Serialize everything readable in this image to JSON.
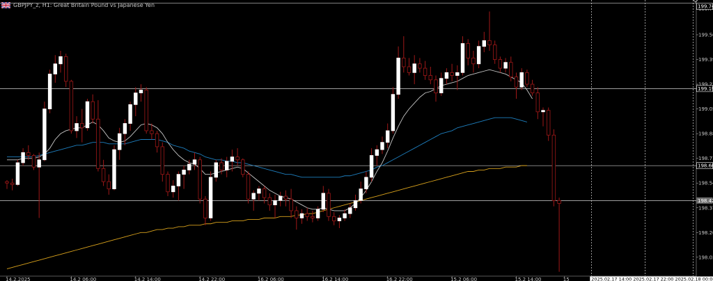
{
  "window": {
    "title": "GBPJPY_z, H1:  Great Britain Pound vs Japanese Yen",
    "flag_icon": "uk-flag-icon"
  },
  "chart_data": {
    "type": "candlestick",
    "symbol": "GBPJPY_z",
    "timeframe": "H1",
    "ylim": [
      197.9,
      199.78
    ],
    "price_ticks": [
      "199.74",
      "199.56",
      "199.39",
      "199.22",
      "199.05",
      "198.88",
      "198.71",
      "198.54",
      "198.37",
      "198.20",
      "198.03"
    ],
    "time_ticks": [
      {
        "i": 0,
        "label": "14.2.2025"
      },
      {
        "i": 12,
        "label": "14.2 06:00"
      },
      {
        "i": 24,
        "label": "14.2 14:00"
      },
      {
        "i": 36,
        "label": "14.2 22:00"
      },
      {
        "i": 47,
        "label": "16.2 06:00"
      },
      {
        "i": 59,
        "label": "16.2 14:00"
      },
      {
        "i": 71,
        "label": "16.2 22:00"
      },
      {
        "i": 83,
        "label": "15.2 06:00"
      },
      {
        "i": 95,
        "label": "15.2 14:00"
      },
      {
        "i": 104,
        "label": "15"
      }
    ],
    "cursor_time_label": "2025.02.17 14:00  2025.02.17 22:00  2025.02.18 00:00",
    "horizontal_lines": [
      {
        "price": 199.19,
        "label": "199.19",
        "color": "#ffffff"
      },
      {
        "price": 198.66,
        "label": "198.66",
        "color": "#ffffff"
      },
      {
        "price": 198.42,
        "label": "198.42",
        "color": "#ffffff",
        "bid": true
      }
    ],
    "top_line_label": "199.74",
    "vlines_index": [
      109,
      119,
      128
    ],
    "candles": [
      [
        198.55,
        198.56,
        198.5,
        198.54
      ],
      [
        198.54,
        198.57,
        198.49,
        198.53
      ],
      [
        198.53,
        198.7,
        198.52,
        198.68
      ],
      [
        198.68,
        198.78,
        198.66,
        198.75
      ],
      [
        198.75,
        198.8,
        198.7,
        198.73
      ],
      [
        198.73,
        198.74,
        198.63,
        198.65
      ],
      [
        198.65,
        198.75,
        198.3,
        198.7
      ],
      [
        198.7,
        199.1,
        198.69,
        199.05
      ],
      [
        199.05,
        199.32,
        199.02,
        199.29
      ],
      [
        199.29,
        199.42,
        199.23,
        199.36
      ],
      [
        199.36,
        199.45,
        199.3,
        199.41
      ],
      [
        199.41,
        199.43,
        199.2,
        199.24
      ],
      [
        199.24,
        199.25,
        198.88,
        198.9
      ],
      [
        198.9,
        199.0,
        198.85,
        198.95
      ],
      [
        198.95,
        199.05,
        198.82,
        198.92
      ],
      [
        198.92,
        199.12,
        198.9,
        199.1
      ],
      [
        199.1,
        199.15,
        198.95,
        198.98
      ],
      [
        198.98,
        199.11,
        198.62,
        198.64
      ],
      [
        198.64,
        198.7,
        198.52,
        198.55
      ],
      [
        198.55,
        198.6,
        198.46,
        198.5
      ],
      [
        198.5,
        198.8,
        198.49,
        198.77
      ],
      [
        198.77,
        198.92,
        198.7,
        198.88
      ],
      [
        198.88,
        198.98,
        198.8,
        198.95
      ],
      [
        198.95,
        199.1,
        198.9,
        199.08
      ],
      [
        199.08,
        199.2,
        199.0,
        199.16
      ],
      [
        199.16,
        199.22,
        199.1,
        199.18
      ],
      [
        199.18,
        199.2,
        198.88,
        198.9
      ],
      [
        198.9,
        198.95,
        198.84,
        198.88
      ],
      [
        198.88,
        198.9,
        198.75,
        198.79
      ],
      [
        198.79,
        198.82,
        198.55,
        198.6
      ],
      [
        198.6,
        198.62,
        198.45,
        198.48
      ],
      [
        198.48,
        198.56,
        198.44,
        198.52
      ],
      [
        198.52,
        198.62,
        198.42,
        198.6
      ],
      [
        198.6,
        198.66,
        198.5,
        198.63
      ],
      [
        198.63,
        198.7,
        198.6,
        198.67
      ],
      [
        198.67,
        198.75,
        198.63,
        198.7
      ],
      [
        198.7,
        198.72,
        198.4,
        198.43
      ],
      [
        198.43,
        198.45,
        198.25,
        198.3
      ],
      [
        198.3,
        198.62,
        198.28,
        198.58
      ],
      [
        198.58,
        198.7,
        198.55,
        198.68
      ],
      [
        198.68,
        198.71,
        198.6,
        198.63
      ],
      [
        198.63,
        198.72,
        198.58,
        198.69
      ],
      [
        198.69,
        198.77,
        198.62,
        198.72
      ],
      [
        198.72,
        198.78,
        198.66,
        198.7
      ],
      [
        198.7,
        198.71,
        198.58,
        198.6
      ],
      [
        198.6,
        198.62,
        198.4,
        198.43
      ],
      [
        198.43,
        198.49,
        198.35,
        198.47
      ],
      [
        198.47,
        198.52,
        198.42,
        198.5
      ],
      [
        198.5,
        198.52,
        198.4,
        198.44
      ],
      [
        198.44,
        198.47,
        198.35,
        198.39
      ],
      [
        198.39,
        198.46,
        198.3,
        198.42
      ],
      [
        198.42,
        198.48,
        198.38,
        198.45
      ],
      [
        198.45,
        198.49,
        198.38,
        198.43
      ],
      [
        198.43,
        198.5,
        198.3,
        198.35
      ],
      [
        198.35,
        198.38,
        198.22,
        198.3
      ],
      [
        198.3,
        198.36,
        198.26,
        198.33
      ],
      [
        198.33,
        198.37,
        198.28,
        198.31
      ],
      [
        198.31,
        198.35,
        198.27,
        198.3
      ],
      [
        198.3,
        198.38,
        198.28,
        198.36
      ],
      [
        198.36,
        198.52,
        198.34,
        198.47
      ],
      [
        198.47,
        198.5,
        198.28,
        198.31
      ],
      [
        198.31,
        198.34,
        198.25,
        198.28
      ],
      [
        198.28,
        198.32,
        198.23,
        198.3
      ],
      [
        198.3,
        198.36,
        198.28,
        198.33
      ],
      [
        198.33,
        198.4,
        198.3,
        198.37
      ],
      [
        198.37,
        198.46,
        198.35,
        198.42
      ],
      [
        198.42,
        198.55,
        198.4,
        198.5
      ],
      [
        198.5,
        198.62,
        198.47,
        198.58
      ],
      [
        198.58,
        198.78,
        198.55,
        198.73
      ],
      [
        198.73,
        198.8,
        198.66,
        198.77
      ],
      [
        198.77,
        198.86,
        198.74,
        198.82
      ],
      [
        198.82,
        198.95,
        198.78,
        198.9
      ],
      [
        198.9,
        199.2,
        198.88,
        199.15
      ],
      [
        199.15,
        199.48,
        199.12,
        199.4
      ],
      [
        199.4,
        199.55,
        199.3,
        199.34
      ],
      [
        199.34,
        199.4,
        199.28,
        199.3
      ],
      [
        199.3,
        199.42,
        199.22,
        199.36
      ],
      [
        199.36,
        199.4,
        199.3,
        199.33
      ],
      [
        199.33,
        199.38,
        199.25,
        199.28
      ],
      [
        199.28,
        199.34,
        199.22,
        199.25
      ],
      [
        199.25,
        199.28,
        199.1,
        199.16
      ],
      [
        199.16,
        199.3,
        199.14,
        199.26
      ],
      [
        199.26,
        199.33,
        199.22,
        199.3
      ],
      [
        199.3,
        199.36,
        199.24,
        199.28
      ],
      [
        199.28,
        199.35,
        199.18,
        199.3
      ],
      [
        199.3,
        199.55,
        199.28,
        199.5
      ],
      [
        199.5,
        199.53,
        199.35,
        199.4
      ],
      [
        199.4,
        199.45,
        199.3,
        199.36
      ],
      [
        199.36,
        199.52,
        199.33,
        199.48
      ],
      [
        199.48,
        199.58,
        199.44,
        199.52
      ],
      [
        199.52,
        199.72,
        199.45,
        199.49
      ],
      [
        199.49,
        199.52,
        199.36,
        199.39
      ],
      [
        199.39,
        199.41,
        199.3,
        199.33
      ],
      [
        199.33,
        199.4,
        199.3,
        199.37
      ],
      [
        199.37,
        199.41,
        199.24,
        199.27
      ],
      [
        199.27,
        199.3,
        199.12,
        199.2
      ],
      [
        199.2,
        199.33,
        199.18,
        199.3
      ],
      [
        199.3,
        199.32,
        199.2,
        199.22
      ],
      [
        199.22,
        199.25,
        199.14,
        199.16
      ],
      [
        199.16,
        199.2,
        198.98,
        199.03
      ],
      [
        199.03,
        199.06,
        198.93,
        199.04
      ],
      [
        199.04,
        199.06,
        198.83,
        198.87
      ],
      [
        198.87,
        198.91,
        198.38,
        198.42
      ],
      [
        198.42,
        198.44,
        197.93,
        198.4
      ]
    ],
    "ma_fast": [
      198.7,
      198.7,
      198.7,
      198.71,
      198.71,
      198.71,
      198.72,
      198.74,
      198.78,
      198.84,
      198.88,
      198.9,
      198.91,
      198.92,
      198.92,
      198.94,
      198.96,
      198.94,
      198.9,
      198.85,
      198.83,
      198.82,
      198.83,
      198.86,
      198.9,
      198.94,
      198.95,
      198.94,
      198.92,
      198.88,
      198.82,
      198.77,
      198.73,
      198.7,
      198.68,
      198.67,
      198.64,
      198.6,
      198.6,
      198.61,
      198.62,
      198.63,
      198.64,
      198.65,
      198.64,
      198.61,
      198.58,
      198.55,
      198.52,
      198.49,
      198.47,
      198.45,
      198.44,
      198.43,
      198.41,
      198.39,
      198.37,
      198.36,
      198.36,
      198.37,
      198.36,
      198.35,
      198.35,
      198.35,
      198.37,
      198.4,
      198.44,
      198.49,
      198.55,
      198.62,
      198.68,
      198.76,
      198.85,
      198.93,
      199.0,
      199.05,
      199.09,
      199.13,
      199.16,
      199.17,
      199.19,
      199.21,
      199.22,
      199.23,
      199.24,
      199.26,
      199.28,
      199.29,
      199.3,
      199.31,
      199.32,
      199.31,
      199.3,
      199.29,
      199.27,
      199.25,
      199.23,
      199.18,
      199.12
    ],
    "ma_mid": [
      198.72,
      198.72,
      198.72,
      198.72,
      198.72,
      198.72,
      198.73,
      198.74,
      198.75,
      198.76,
      198.77,
      198.78,
      198.79,
      198.8,
      198.8,
      198.81,
      198.82,
      198.82,
      198.82,
      198.81,
      198.81,
      198.81,
      198.81,
      198.82,
      198.83,
      198.84,
      198.84,
      198.84,
      198.84,
      198.83,
      198.82,
      198.8,
      198.79,
      198.78,
      198.76,
      198.75,
      198.74,
      198.72,
      198.71,
      198.7,
      198.7,
      198.69,
      198.69,
      198.68,
      198.68,
      198.67,
      198.66,
      198.65,
      198.64,
      198.63,
      198.62,
      198.61,
      198.6,
      198.6,
      198.59,
      198.58,
      198.58,
      198.58,
      198.58,
      198.58,
      198.58,
      198.58,
      198.58,
      198.59,
      198.59,
      198.6,
      198.61,
      198.62,
      198.63,
      198.65,
      198.66,
      198.68,
      198.7,
      198.72,
      198.74,
      198.76,
      198.78,
      198.8,
      198.82,
      198.84,
      198.86,
      198.88,
      198.89,
      198.9,
      198.92,
      198.93,
      198.94,
      198.95,
      198.96,
      198.97,
      198.98,
      198.99,
      198.99,
      198.99,
      198.99,
      198.98,
      198.97,
      198.96
    ],
    "ma_slow": [
      197.95,
      197.96,
      197.97,
      197.98,
      197.99,
      198.0,
      198.01,
      198.02,
      198.03,
      198.04,
      198.05,
      198.06,
      198.07,
      198.08,
      198.09,
      198.1,
      198.11,
      198.12,
      198.13,
      198.14,
      198.15,
      198.16,
      198.17,
      198.18,
      198.19,
      198.2,
      198.2,
      198.21,
      198.22,
      198.22,
      198.23,
      198.23,
      198.24,
      198.24,
      198.25,
      198.25,
      198.25,
      198.26,
      198.26,
      198.27,
      198.27,
      198.27,
      198.28,
      198.28,
      198.28,
      198.29,
      198.29,
      198.29,
      198.3,
      198.3,
      198.3,
      198.31,
      198.31,
      198.31,
      198.32,
      198.32,
      198.33,
      198.33,
      198.34,
      198.35,
      198.36,
      198.37,
      198.38,
      198.39,
      198.4,
      198.41,
      198.42,
      198.43,
      198.44,
      198.45,
      198.46,
      198.47,
      198.48,
      198.49,
      198.5,
      198.51,
      198.52,
      198.53,
      198.54,
      198.55,
      198.56,
      198.57,
      198.58,
      198.59,
      198.6,
      198.61,
      198.62,
      198.62,
      198.63,
      198.63,
      198.64,
      198.64,
      198.64,
      198.65,
      198.65,
      198.65,
      198.66,
      198.66
    ],
    "colors": {
      "background": "#000000",
      "bull_body": "#ffffff",
      "bear_body": "#000000",
      "wick": "#a01818",
      "ma_fast": "#c8c8c8",
      "ma_mid": "#1e7fbf",
      "ma_slow": "#d9a21c",
      "hline": "#ffffff",
      "vline": "#ffffff",
      "axis_text": "#c8c8c8"
    }
  }
}
